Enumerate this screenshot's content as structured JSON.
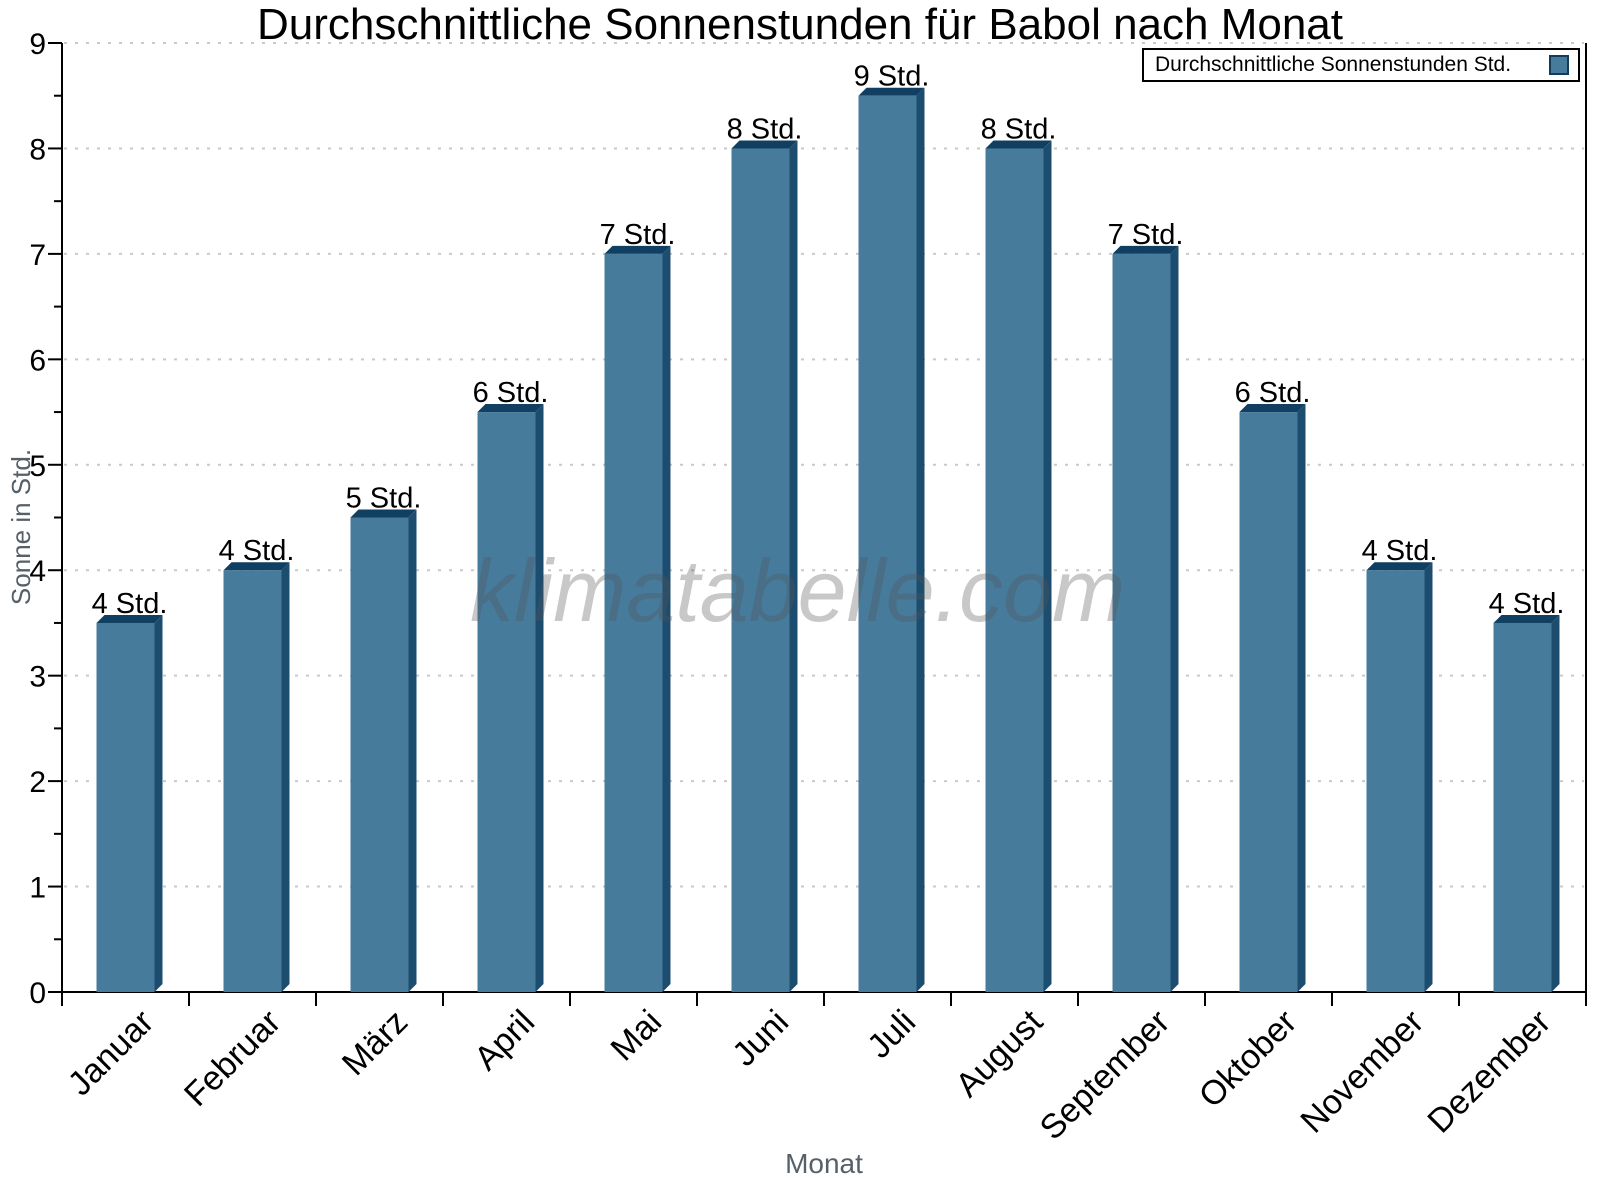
{
  "title": "Durchschnittliche Sonnenstunden für Babol nach Monat",
  "watermark": "klimatabelle.com",
  "legend": {
    "label": "Durchschnittliche Sonnenstunden Std."
  },
  "x_axis_title": "Monat",
  "y_axis_title": "Sonne in Std.",
  "chart_data": {
    "type": "bar",
    "title": "Durchschnittliche Sonnenstunden für Babol nach Monat",
    "categories": [
      "Januar",
      "Februar",
      "März",
      "April",
      "Mai",
      "Juni",
      "Juli",
      "August",
      "September",
      "Oktober",
      "November",
      "Dezember"
    ],
    "values": [
      3.5,
      4.0,
      4.5,
      5.5,
      7.0,
      8.0,
      8.5,
      8.0,
      7.0,
      5.5,
      4.0,
      3.5
    ],
    "bar_labels": [
      "4 Std.",
      "4 Std.",
      "5 Std.",
      "6 Std.",
      "7 Std.",
      "8 Std.",
      "9 Std.",
      "8 Std.",
      "7 Std.",
      "6 Std.",
      "4 Std.",
      "4 Std."
    ],
    "xlabel": "Monat",
    "ylabel": "Sonne in Std.",
    "ylim": [
      0,
      9
    ],
    "y_tick_labels": [
      "0",
      "1",
      "2",
      "3",
      "4",
      "5",
      "6",
      "7",
      "8",
      "9"
    ],
    "y_major_step": 1,
    "y_minor_step": 0.5,
    "grid": "horizontal-dotted",
    "legend_entries": [
      "Durchschnittliche Sonnenstunden Std."
    ],
    "legend_position": "top-right",
    "colors": {
      "bar_front": "#467b9c",
      "bar_top": "#103f61",
      "bar_side": "#1c4d6f",
      "swatch_border": "#123c5c",
      "grid": "#c9c9c9",
      "axis": "#000000",
      "muted_text": "#566069"
    }
  }
}
